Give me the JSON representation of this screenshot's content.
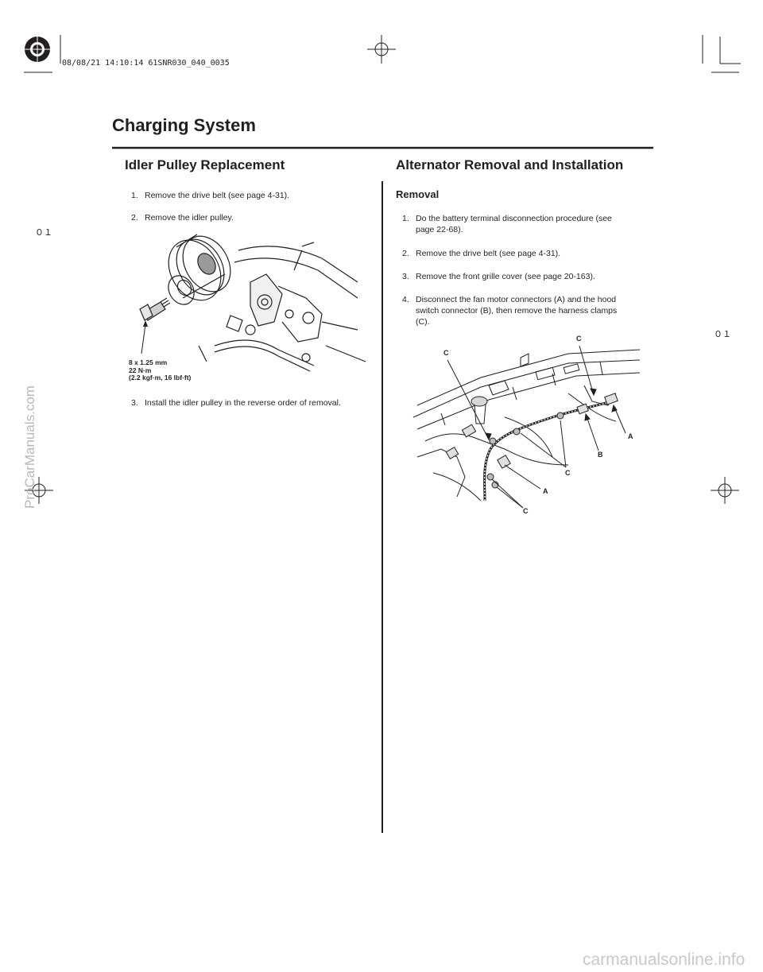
{
  "print_stamp": "08/08/21 14:10:14 61SNR030_040_0035",
  "page_title": "Charging System",
  "left": {
    "heading": "Idler Pulley Replacement",
    "steps": [
      {
        "num": "1.",
        "text": "Remove the drive belt (see page 4-31)."
      },
      {
        "num": "2.",
        "text": "Remove the idler pulley."
      },
      {
        "num": "3.",
        "text": "Install the idler pulley in the reverse order of removal."
      }
    ],
    "torque_spec": [
      "8 x 1.25 mm",
      "22 N·m",
      "(2.2 kgf·m, 16 lbf·ft)"
    ]
  },
  "right": {
    "heading": "Alternator Removal and Installation",
    "subheading": "Removal",
    "steps": [
      {
        "num": "1.",
        "text": "Do the battery terminal disconnection procedure (see page 22-68)."
      },
      {
        "num": "2.",
        "text": "Remove the drive belt (see page 4-31)."
      },
      {
        "num": "3.",
        "text": "Remove the front grille cover (see page 20-163)."
      },
      {
        "num": "4.",
        "text": "Disconnect the fan motor connectors (A) and the hood switch connector (B), then remove the harness clamps (C)."
      }
    ],
    "callouts": [
      "C",
      "C",
      "A",
      "B",
      "C",
      "A",
      "C"
    ]
  },
  "page_marks": [
    "０１",
    "０１"
  ],
  "watermarks": {
    "side": "ProCarManuals.com",
    "bottom": "carmanualsonline.info"
  }
}
